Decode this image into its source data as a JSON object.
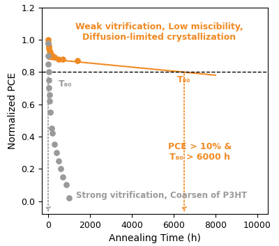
{
  "chart_data": {
    "type": "scatter",
    "x_label": "Annealing Time (h)",
    "y_label": "Normalized PCE",
    "xlim": [
      -300,
      10500
    ],
    "xticks": [
      0,
      2000,
      4000,
      6000,
      8000,
      10000
    ],
    "ylim": [
      -0.08,
      1.2
    ],
    "yticks": [
      {
        "value": 0.0,
        "label": "0.0"
      },
      0.2,
      0.4,
      0.6,
      0.8,
      {
        "value": 1.0,
        "label": "1.0"
      },
      1.2
    ],
    "series": [
      {
        "type": "scatter",
        "color": "#f08a24",
        "marker": "o",
        "x": [
          0,
          10,
          20,
          30,
          50,
          100,
          200,
          300,
          500,
          700,
          1400
        ],
        "values": [
          1.0,
          0.98,
          0.96,
          0.95,
          0.93,
          0.92,
          0.9,
          0.89,
          0.88,
          0.88,
          0.87
        ]
      },
      {
        "type": "scatter",
        "color": "#9a9a9a",
        "marker": "o",
        "x": [
          0,
          5,
          10,
          20,
          30,
          40,
          60,
          80,
          100,
          150,
          200,
          300,
          400,
          500,
          600,
          700,
          850,
          1000
        ],
        "values": [
          0.98,
          0.9,
          0.85,
          0.8,
          0.75,
          0.7,
          0.66,
          0.62,
          0.55,
          0.45,
          0.42,
          0.35,
          0.3,
          0.25,
          0.2,
          0.15,
          0.1,
          0.02
        ]
      },
      {
        "type": "line",
        "color": "#f08a24",
        "line_style": "solid",
        "x": [
          0,
          8000
        ],
        "values": [
          0.88,
          0.78
        ]
      },
      {
        "type": "line",
        "color": "#000000",
        "line_style": "dashed",
        "x": [
          -300,
          10500
        ],
        "values": [
          0.8,
          0.8
        ]
      }
    ],
    "arrows": [
      {
        "x": 6500,
        "from": 0.8,
        "to": -0.08,
        "color": "#f08a24"
      },
      {
        "x": 0,
        "from": 0.78,
        "to": -0.08,
        "color": "#9a9a9a"
      }
    ],
    "annotations": [
      {
        "text": "Weak vitrification, Low miscibility,\nDiffusion-limited crystallization",
        "color": "#f08a24"
      },
      {
        "text": "T₈₀",
        "color": "#f08a24"
      },
      {
        "text": "T₈₀",
        "color": "#9a9a9a"
      },
      {
        "text": "PCE > 10% &\nT₈₀ > 6000 h",
        "color": "#f08a24"
      },
      {
        "text": "Strong vitrification, Coarsen of P3HT",
        "color": "#9a9a9a"
      }
    ]
  }
}
